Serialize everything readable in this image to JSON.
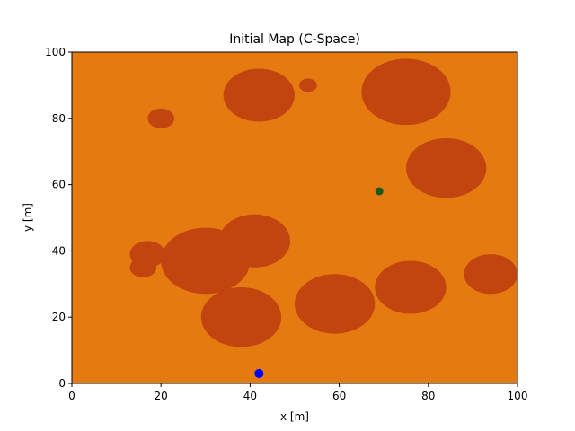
{
  "chart_data": {
    "type": "scatter",
    "title": "Initial Map (C-Space)",
    "xlabel": "x [m]",
    "ylabel": "y [m]",
    "xlim": [
      0,
      100
    ],
    "ylim": [
      0,
      100
    ],
    "xticks": [
      0,
      20,
      40,
      60,
      80,
      100
    ],
    "yticks": [
      0,
      20,
      40,
      60,
      80,
      100
    ],
    "grid": false,
    "colors": {
      "free_space": "#e57a10",
      "obstacle": "#c2440f",
      "start": "#0000ff",
      "goal": "#1a5a1f"
    },
    "obstacles": [
      {
        "cx": 42,
        "cy": 87,
        "r": 8
      },
      {
        "cx": 53,
        "cy": 90,
        "r": 2
      },
      {
        "cx": 75,
        "cy": 88,
        "r": 10
      },
      {
        "cx": 20,
        "cy": 80,
        "r": 3
      },
      {
        "cx": 84,
        "cy": 65,
        "r": 9
      },
      {
        "cx": 41,
        "cy": 43,
        "r": 8
      },
      {
        "cx": 17,
        "cy": 39,
        "r": 4
      },
      {
        "cx": 16,
        "cy": 35,
        "r": 3
      },
      {
        "cx": 30,
        "cy": 37,
        "r": 10
      },
      {
        "cx": 38,
        "cy": 20,
        "r": 9
      },
      {
        "cx": 59,
        "cy": 24,
        "r": 9
      },
      {
        "cx": 76,
        "cy": 29,
        "r": 8
      },
      {
        "cx": 94,
        "cy": 33,
        "r": 6
      }
    ],
    "points": [
      {
        "role": "start",
        "x": 42,
        "y": 3
      },
      {
        "role": "goal",
        "x": 69,
        "y": 58
      }
    ]
  }
}
